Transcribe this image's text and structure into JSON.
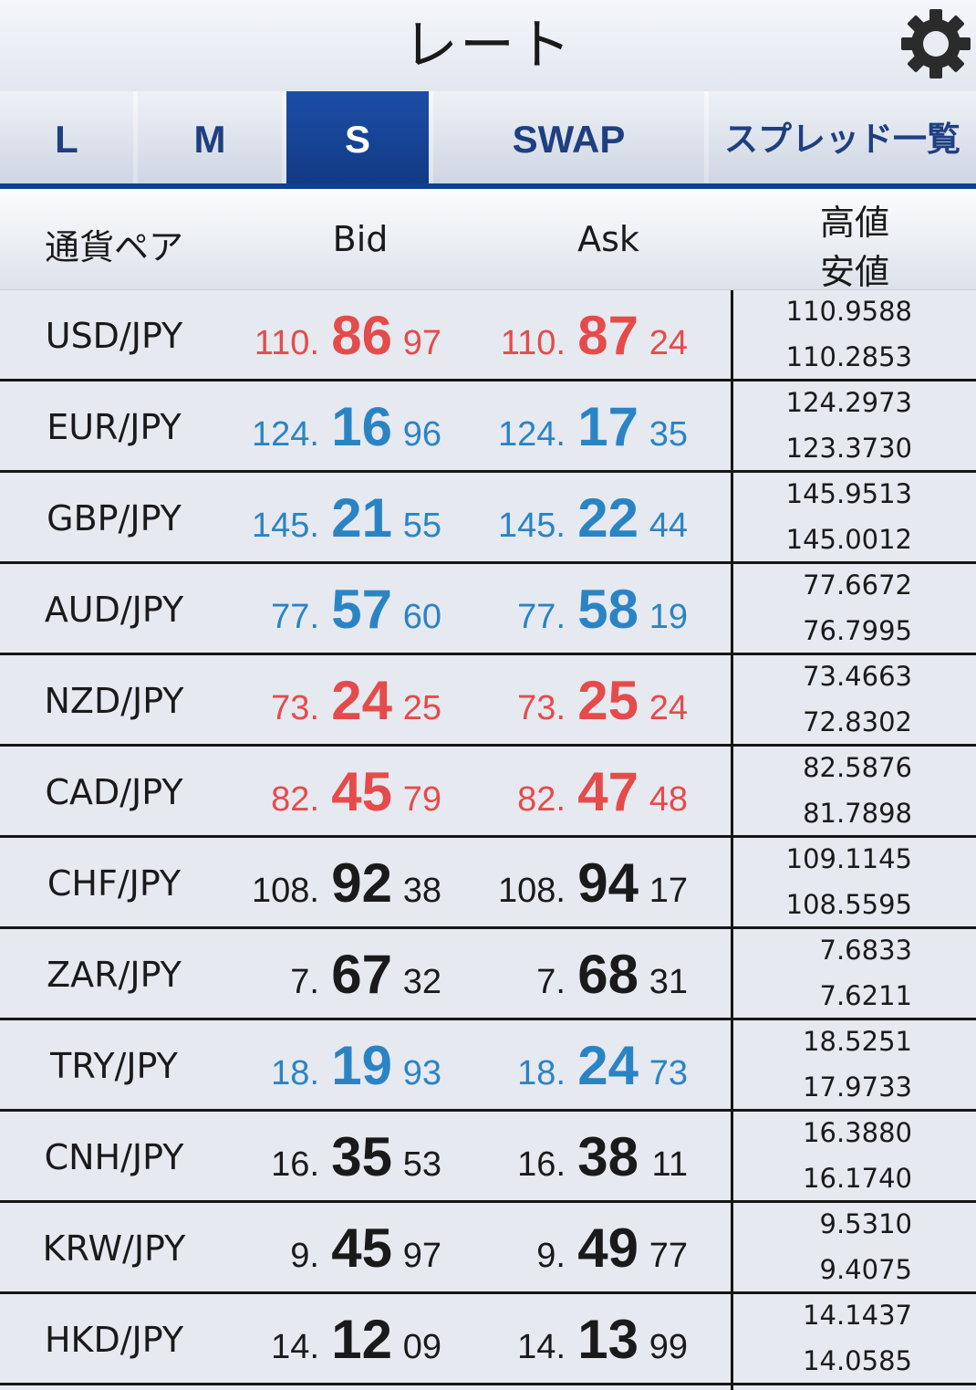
{
  "header": {
    "title": "レート",
    "settings_icon": "gear-icon"
  },
  "tabs": [
    {
      "label": "L",
      "active": false
    },
    {
      "label": "M",
      "active": false
    },
    {
      "label": "S",
      "active": true
    },
    {
      "label": "SWAP",
      "active": false
    },
    {
      "label": "スプレッド一覧",
      "active": false
    }
  ],
  "columns": {
    "pair": "通貨ペア",
    "bid": "Bid",
    "ask": "Ask",
    "high": "高値",
    "low": "安値"
  },
  "colors": {
    "red": "#e54b4b",
    "blue": "#2a84c4",
    "black": "#1a1a1a",
    "active_tab": "#1c4ea6"
  },
  "rows": [
    {
      "pair": "USD/JPY",
      "color": "red",
      "bid": {
        "int": "110.",
        "big": "86",
        "small": "97"
      },
      "ask": {
        "int": "110.",
        "big": "87",
        "small": "24"
      },
      "high": "110.9588",
      "low": "110.2853"
    },
    {
      "pair": "EUR/JPY",
      "color": "blue",
      "bid": {
        "int": "124.",
        "big": "16",
        "small": "96"
      },
      "ask": {
        "int": "124.",
        "big": "17",
        "small": "35"
      },
      "high": "124.2973",
      "low": "123.3730"
    },
    {
      "pair": "GBP/JPY",
      "color": "blue",
      "bid": {
        "int": "145.",
        "big": "21",
        "small": "55"
      },
      "ask": {
        "int": "145.",
        "big": "22",
        "small": "44"
      },
      "high": "145.9513",
      "low": "145.0012"
    },
    {
      "pair": "AUD/JPY",
      "color": "blue",
      "bid": {
        "int": "77.",
        "big": "57",
        "small": "60"
      },
      "ask": {
        "int": "77.",
        "big": "58",
        "small": "19"
      },
      "high": "77.6672",
      "low": "76.7995"
    },
    {
      "pair": "NZD/JPY",
      "color": "red",
      "bid": {
        "int": "73.",
        "big": "24",
        "small": "25"
      },
      "ask": {
        "int": "73.",
        "big": "25",
        "small": "24"
      },
      "high": "73.4663",
      "low": "72.8302"
    },
    {
      "pair": "CAD/JPY",
      "color": "red",
      "bid": {
        "int": "82.",
        "big": "45",
        "small": "79"
      },
      "ask": {
        "int": "82.",
        "big": "47",
        "small": "48"
      },
      "high": "82.5876",
      "low": "81.7898"
    },
    {
      "pair": "CHF/JPY",
      "color": "black",
      "bid": {
        "int": "108.",
        "big": "92",
        "small": "38"
      },
      "ask": {
        "int": "108.",
        "big": "94",
        "small": "17"
      },
      "high": "109.1145",
      "low": "108.5595"
    },
    {
      "pair": "ZAR/JPY",
      "color": "black",
      "bid": {
        "int": "7.",
        "big": "67",
        "small": "32"
      },
      "ask": {
        "int": "7.",
        "big": "68",
        "small": "31"
      },
      "high": "7.6833",
      "low": "7.6211"
    },
    {
      "pair": "TRY/JPY",
      "color": "blue",
      "bid": {
        "int": "18.",
        "big": "19",
        "small": "93"
      },
      "ask": {
        "int": "18.",
        "big": "24",
        "small": "73"
      },
      "high": "18.5251",
      "low": "17.9733"
    },
    {
      "pair": "CNH/JPY",
      "color": "black",
      "bid": {
        "int": "16.",
        "big": "35",
        "small": "53"
      },
      "ask": {
        "int": "16.",
        "big": "38",
        "small": "11"
      },
      "high": "16.3880",
      "low": "16.1740"
    },
    {
      "pair": "KRW/JPY",
      "color": "black",
      "bid": {
        "int": "9.",
        "big": "45",
        "small": "97"
      },
      "ask": {
        "int": "9.",
        "big": "49",
        "small": "77"
      },
      "high": "9.5310",
      "low": "9.4075"
    },
    {
      "pair": "HKD/JPY",
      "color": "black",
      "bid": {
        "int": "14.",
        "big": "12",
        "small": "09"
      },
      "ask": {
        "int": "14.",
        "big": "13",
        "small": "99"
      },
      "high": "14.1437",
      "low": "14.0585"
    }
  ]
}
